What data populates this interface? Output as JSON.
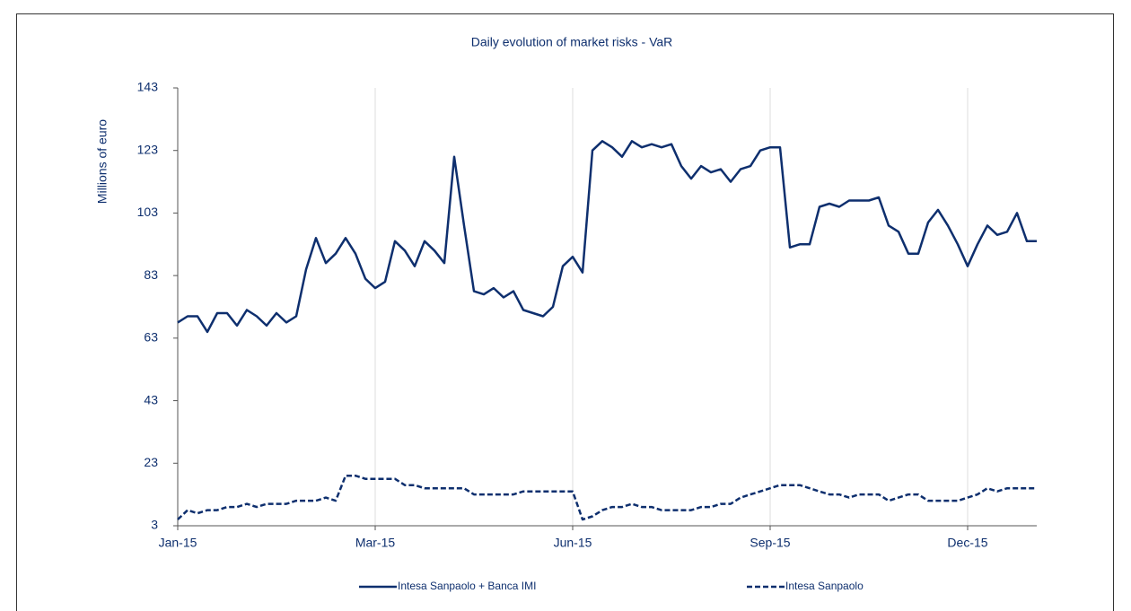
{
  "chart_data": {
    "type": "line",
    "title": "Daily evolution of market risks - VaR",
    "y_label": "Millions  of euro",
    "categories": [
      "Jan-15",
      null,
      null,
      null,
      null,
      null,
      null,
      null,
      null,
      null,
      null,
      null,
      null,
      null,
      null,
      null,
      null,
      null,
      null,
      null,
      "Mar-15",
      null,
      null,
      null,
      null,
      null,
      null,
      null,
      null,
      null,
      null,
      null,
      null,
      null,
      null,
      null,
      null,
      null,
      null,
      null,
      "Jun-15",
      null,
      null,
      null,
      null,
      null,
      null,
      null,
      null,
      null,
      null,
      null,
      null,
      null,
      null,
      null,
      null,
      null,
      null,
      null,
      "Sep-15",
      null,
      null,
      null,
      null,
      null,
      null,
      null,
      null,
      null,
      null,
      null,
      null,
      null,
      null,
      null,
      null,
      null,
      null,
      null,
      "Dec-15",
      null,
      null,
      null,
      null,
      null,
      null,
      null
    ],
    "series": [
      {
        "name": "Intesa Sanpaolo + Banca IMI",
        "color": "#0e2f6e",
        "line_style": "solid",
        "values": [
          68,
          70,
          70,
          65,
          71,
          71,
          67,
          72,
          70,
          67,
          71,
          68,
          70,
          85,
          95,
          87,
          90,
          95,
          90,
          82,
          79,
          81,
          94,
          91,
          86,
          94,
          91,
          87,
          121,
          99,
          78,
          77,
          79,
          76,
          78,
          72,
          71,
          70,
          73,
          86,
          89,
          84,
          123,
          126,
          124,
          121,
          126,
          124,
          125,
          124,
          125,
          118,
          114,
          118,
          116,
          117,
          113,
          117,
          118,
          123,
          124,
          124,
          92,
          93,
          93,
          105,
          106,
          105,
          107,
          107,
          107,
          108,
          99,
          97,
          90,
          90,
          100,
          104,
          99,
          93,
          86,
          93,
          99,
          96,
          97,
          103,
          94,
          94
        ]
      },
      {
        "name": "Intesa Sanpaolo",
        "color": "#0e2f6e",
        "line_style": "dashed",
        "values": [
          5,
          8,
          7,
          8,
          8,
          9,
          9,
          10,
          9,
          10,
          10,
          10,
          11,
          11,
          11,
          12,
          11,
          19,
          19,
          18,
          18,
          18,
          18,
          16,
          16,
          15,
          15,
          15,
          15,
          15,
          13,
          13,
          13,
          13,
          13,
          14,
          14,
          14,
          14,
          14,
          14,
          5,
          6,
          8,
          9,
          9,
          10,
          9,
          9,
          8,
          8,
          8,
          8,
          9,
          9,
          10,
          10,
          12,
          13,
          14,
          15,
          16,
          16,
          16,
          15,
          14,
          13,
          13,
          12,
          13,
          13,
          13,
          11,
          12,
          13,
          13,
          11,
          11,
          11,
          11,
          12,
          13,
          15,
          14,
          15,
          15,
          15,
          15
        ]
      }
    ],
    "ylim": [
      3,
      143
    ],
    "yticks": [
      3,
      23,
      43,
      63,
      83,
      103,
      123,
      143
    ],
    "grid": true,
    "legend": "bottom"
  }
}
